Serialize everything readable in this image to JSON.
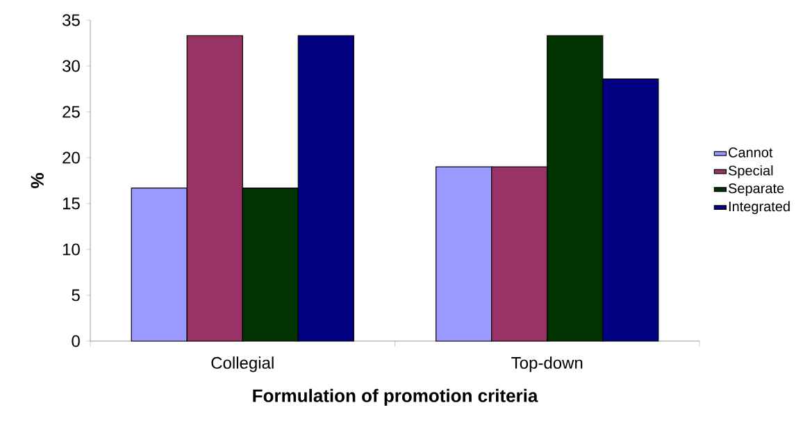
{
  "chart_data": {
    "type": "bar",
    "xlabel": "Formulation of promotion criteria",
    "ylabel": "%",
    "categories": [
      "Collegial",
      "Top-down"
    ],
    "series": [
      {
        "name": "Cannot",
        "color": "#9999ff",
        "values": [
          16.7,
          19.0
        ]
      },
      {
        "name": "Special",
        "color": "#993366",
        "values": [
          33.3,
          19.0
        ]
      },
      {
        "name": "Separate",
        "color": "#003300",
        "values": [
          16.7,
          33.3
        ]
      },
      {
        "name": "Integrated",
        "color": "#000080",
        "values": [
          33.3,
          28.6
        ]
      }
    ],
    "ylim": [
      0,
      35
    ],
    "yticks": [
      0,
      5,
      10,
      15,
      20,
      25,
      30,
      35
    ],
    "grid": false,
    "legend": "right"
  }
}
